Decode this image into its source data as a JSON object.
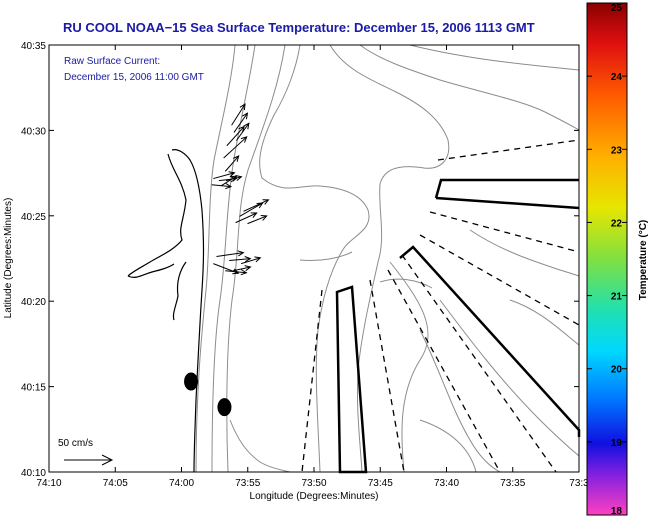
{
  "chart_data": {
    "type": "map",
    "title": "RU COOL  NOAA−15  Sea Surface Temperature:  December 15, 2006 1113 GMT",
    "xlabel": "Longitude (Degrees:Minutes)",
    "ylabel": "Latitude (Degrees:Minutes)",
    "x_tick_labels": [
      "74:10",
      "74:05",
      "74:00",
      "73:55",
      "73:50",
      "73:45",
      "73:40",
      "73:35",
      "73:3"
    ],
    "y_tick_labels": [
      "40:35",
      "40:30",
      "40:25",
      "40:20",
      "40:15",
      "40:10"
    ],
    "xlim": [
      -74.1667,
      -73.5
    ],
    "ylim": [
      40.1667,
      40.5833
    ],
    "annotation_lines": [
      "Raw Surface Current:",
      "December 15, 2006 11:00 GMT"
    ],
    "scale_arrow": {
      "label": "50 cm/s",
      "length_cm_s": 50
    },
    "colorbar": {
      "label": "Temperature (°C)",
      "min": 18,
      "max": 25,
      "ticks": [
        "25",
        "24",
        "23",
        "22",
        "21",
        "20",
        "19",
        "18"
      ]
    },
    "current_vectors": [
      {
        "lon": -73.937,
        "lat": 40.505,
        "u": 14,
        "v": 22
      },
      {
        "lon": -73.934,
        "lat": 40.498,
        "u": 14,
        "v": 20
      },
      {
        "lon": -73.931,
        "lat": 40.49,
        "u": 13,
        "v": 18
      },
      {
        "lon": -73.943,
        "lat": 40.485,
        "u": 18,
        "v": 20
      },
      {
        "lon": -73.947,
        "lat": 40.473,
        "u": 24,
        "v": 22
      },
      {
        "lon": -73.945,
        "lat": 40.46,
        "u": 14,
        "v": 16
      },
      {
        "lon": -73.96,
        "lat": 40.453,
        "u": 22,
        "v": 6
      },
      {
        "lon": -73.953,
        "lat": 40.451,
        "u": 18,
        "v": 2
      },
      {
        "lon": -73.962,
        "lat": 40.447,
        "u": 20,
        "v": -2
      },
      {
        "lon": -73.95,
        "lat": 40.446,
        "u": 16,
        "v": 10
      },
      {
        "lon": -73.944,
        "lat": 40.451,
        "u": 16,
        "v": 4
      },
      {
        "lon": -73.922,
        "lat": 40.421,
        "u": 26,
        "v": 12
      },
      {
        "lon": -73.927,
        "lat": 40.416,
        "u": 24,
        "v": 14
      },
      {
        "lon": -73.932,
        "lat": 40.41,
        "u": 22,
        "v": 10
      },
      {
        "lon": -73.917,
        "lat": 40.409,
        "u": 20,
        "v": 8
      },
      {
        "lon": -73.956,
        "lat": 40.377,
        "u": 28,
        "v": 4
      },
      {
        "lon": -73.94,
        "lat": 40.373,
        "u": 22,
        "v": 2
      },
      {
        "lon": -73.925,
        "lat": 40.37,
        "u": 20,
        "v": 6
      },
      {
        "lon": -73.96,
        "lat": 40.37,
        "u": 26,
        "v": -10
      },
      {
        "lon": -73.945,
        "lat": 40.363,
        "u": 22,
        "v": -2
      },
      {
        "lon": -73.935,
        "lat": 40.363,
        "u": 18,
        "v": 4
      }
    ],
    "buoys": [
      {
        "lon": -73.988,
        "lat": 40.255
      },
      {
        "lon": -73.946,
        "lat": 40.23
      }
    ]
  }
}
